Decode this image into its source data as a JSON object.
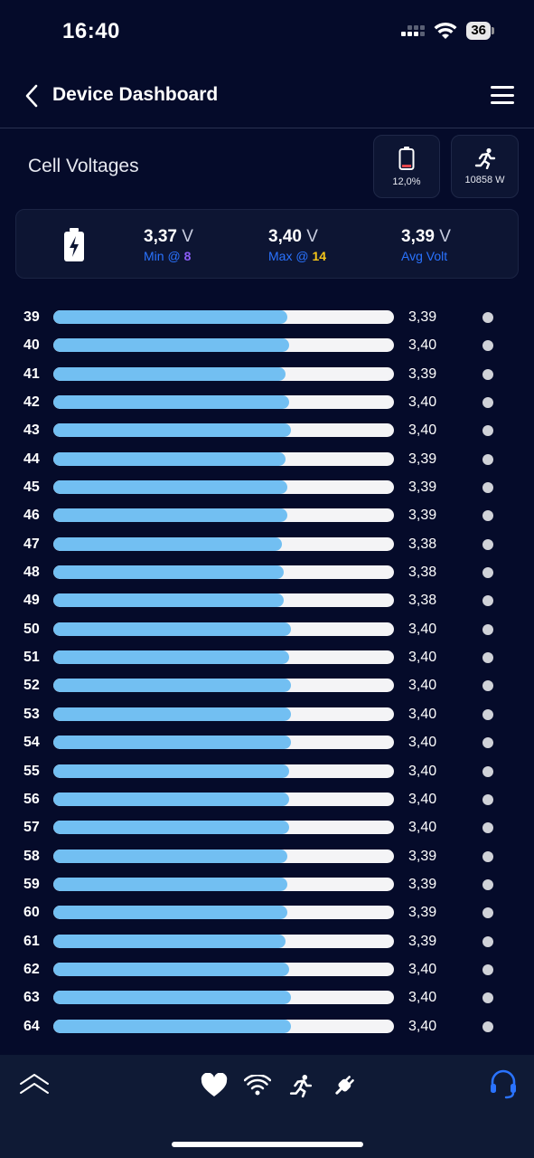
{
  "status_bar": {
    "time": "16:40",
    "battery": "36"
  },
  "nav": {
    "title": "Device Dashboard"
  },
  "section": {
    "title": "Cell Voltages"
  },
  "tiles": {
    "battery_level": "12,0%",
    "power": "10858 W"
  },
  "summary": {
    "min": {
      "value": "3,37",
      "unit": "V",
      "caption": "Min @",
      "cell": "8"
    },
    "max": {
      "value": "3,40",
      "unit": "V",
      "caption": "Max @",
      "cell": "14"
    },
    "avg": {
      "value": "3,39",
      "unit": "V",
      "caption": "Avg Volt"
    }
  },
  "bar_scale": {
    "min": 3.0,
    "max": 3.6
  },
  "cells": [
    {
      "index": "39",
      "voltage": "3,39",
      "fill": 0.688
    },
    {
      "index": "40",
      "voltage": "3,40",
      "fill": 0.693
    },
    {
      "index": "41",
      "voltage": "3,39",
      "fill": 0.682
    },
    {
      "index": "42",
      "voltage": "3,40",
      "fill": 0.693
    },
    {
      "index": "43",
      "voltage": "3,40",
      "fill": 0.698
    },
    {
      "index": "44",
      "voltage": "3,39",
      "fill": 0.682
    },
    {
      "index": "45",
      "voltage": "3,39",
      "fill": 0.688
    },
    {
      "index": "46",
      "voltage": "3,39",
      "fill": 0.688
    },
    {
      "index": "47",
      "voltage": "3,38",
      "fill": 0.672
    },
    {
      "index": "48",
      "voltage": "3,38",
      "fill": 0.677
    },
    {
      "index": "49",
      "voltage": "3,38",
      "fill": 0.677
    },
    {
      "index": "50",
      "voltage": "3,40",
      "fill": 0.698
    },
    {
      "index": "51",
      "voltage": "3,40",
      "fill": 0.693
    },
    {
      "index": "52",
      "voltage": "3,40",
      "fill": 0.698
    },
    {
      "index": "53",
      "voltage": "3,40",
      "fill": 0.698
    },
    {
      "index": "54",
      "voltage": "3,40",
      "fill": 0.698
    },
    {
      "index": "55",
      "voltage": "3,40",
      "fill": 0.693
    },
    {
      "index": "56",
      "voltage": "3,40",
      "fill": 0.693
    },
    {
      "index": "57",
      "voltage": "3,40",
      "fill": 0.693
    },
    {
      "index": "58",
      "voltage": "3,39",
      "fill": 0.688
    },
    {
      "index": "59",
      "voltage": "3,39",
      "fill": 0.688
    },
    {
      "index": "60",
      "voltage": "3,39",
      "fill": 0.688
    },
    {
      "index": "61",
      "voltage": "3,39",
      "fill": 0.682
    },
    {
      "index": "62",
      "voltage": "3,40",
      "fill": 0.693
    },
    {
      "index": "63",
      "voltage": "3,40",
      "fill": 0.698
    },
    {
      "index": "64",
      "voltage": "3,40",
      "fill": 0.698
    }
  ],
  "colors": {
    "background": "#050b2a",
    "bar_fill": "#72bff2",
    "bar_track": "#f4f4f6",
    "accent_blue": "#2a73ff",
    "min_highlight": "#8b5cf6",
    "max_highlight": "#f5c518",
    "battery_low": "#e5484d"
  },
  "tab_bar": {
    "items": [
      "collapse-icon",
      "heart-icon",
      "wifi-icon",
      "running-icon",
      "plug-icon",
      "headset-icon"
    ]
  }
}
